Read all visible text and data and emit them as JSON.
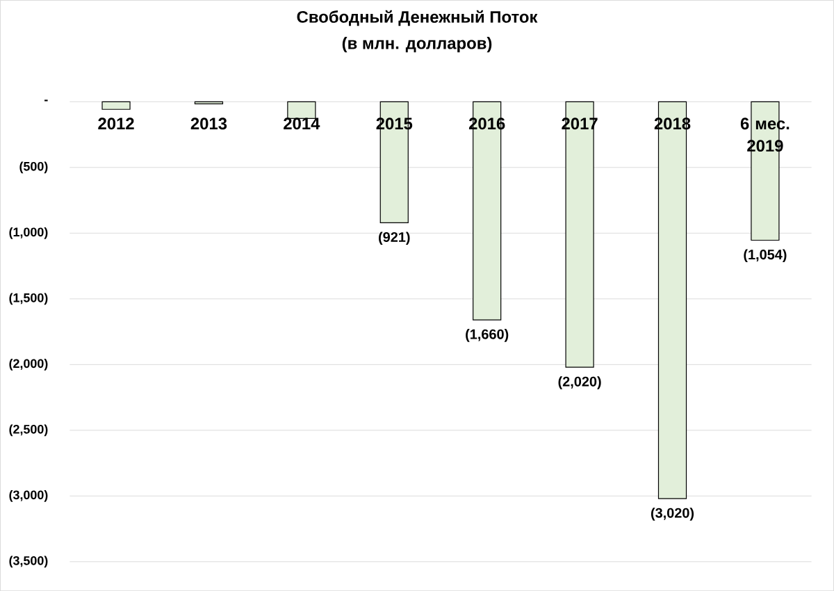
{
  "chart_data": {
    "type": "bar",
    "title": "Свободный Денежный Поток\n(в млн. долларов)",
    "categories": [
      "2012",
      "2013",
      "2014",
      "2015",
      "2016",
      "2017",
      "2018",
      "6 мес. 2019"
    ],
    "values": [
      -58,
      -16,
      -127,
      -921,
      -1660,
      -2020,
      -3020,
      -1054
    ],
    "value_labels": [
      null,
      null,
      null,
      "(921)",
      "(1,660)",
      "(2,020)",
      "(3,020)",
      "(1,054)"
    ],
    "color": "#e2efda",
    "ylim": [
      -3500,
      0
    ],
    "yticks": [
      {
        "value": 0,
        "label": "-"
      },
      {
        "value": -500,
        "label": "(500)"
      },
      {
        "value": -1000,
        "label": "(1,000)"
      },
      {
        "value": -1500,
        "label": "(1,500)"
      },
      {
        "value": -2000,
        "label": "(2,000)"
      },
      {
        "value": -2500,
        "label": "(2,500)"
      },
      {
        "value": -3000,
        "label": "(3,000)"
      },
      {
        "value": -3500,
        "label": "(3,500)"
      }
    ],
    "grid": "y"
  }
}
